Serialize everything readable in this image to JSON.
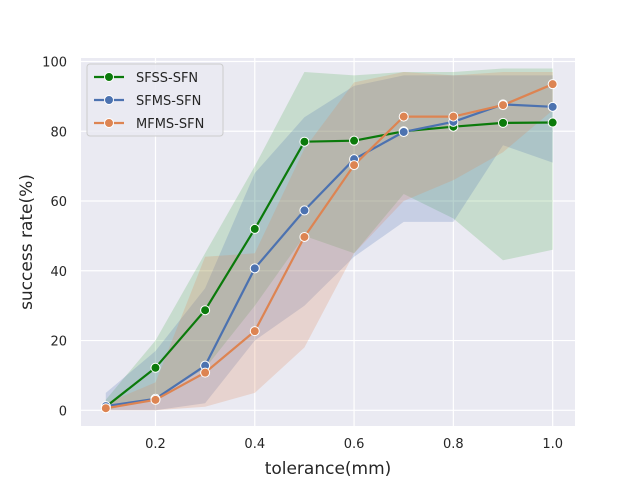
{
  "chart_data": {
    "type": "line",
    "title": "",
    "xlabel": "tolerance(mm)",
    "ylabel": "success rate(%)",
    "xlim": [
      0.05,
      1.045
    ],
    "ylim": [
      -4.5,
      101
    ],
    "grid": true,
    "legend_position": "top-left",
    "x": [
      0.1,
      0.2,
      0.3,
      0.4,
      0.5,
      0.6,
      0.7,
      0.8,
      0.9,
      1.0
    ],
    "x_ticks": [
      0.2,
      0.4,
      0.6,
      0.8,
      1.0
    ],
    "x_tick_labels": [
      "0.2",
      "0.4",
      "0.6",
      "0.8",
      "1.0"
    ],
    "y_ticks": [
      0,
      20,
      40,
      60,
      80,
      100
    ],
    "y_tick_labels": [
      "0",
      "20",
      "40",
      "60",
      "80",
      "100"
    ],
    "series": [
      {
        "name": "SFSS-SFN",
        "color": "#0b7a0b",
        "fill": "#4cae4c",
        "values": [
          1.0,
          12.2,
          28.7,
          52.0,
          77.0,
          77.3,
          80.0,
          81.3,
          82.4,
          82.5
        ],
        "lower": [
          0.0,
          3.5,
          12.0,
          30.0,
          50.0,
          45.0,
          62.0,
          55.0,
          43.0,
          46.0
        ],
        "upper": [
          3.0,
          20.0,
          45.0,
          70.0,
          97.0,
          96.0,
          97.0,
          97.0,
          98.0,
          98.0
        ]
      },
      {
        "name": "SFMS-SFN",
        "color": "#4c72b0",
        "fill": "#4c72b0",
        "values": [
          1.2,
          3.3,
          12.8,
          40.7,
          57.3,
          72.0,
          79.8,
          82.7,
          87.7,
          87.0
        ],
        "lower": [
          0.0,
          0.0,
          2.0,
          20.0,
          30.0,
          44.0,
          54.0,
          54.0,
          76.0,
          71.0
        ],
        "upper": [
          5.0,
          17.0,
          35.0,
          68.0,
          84.0,
          93.0,
          96.0,
          96.0,
          96.0,
          96.0
        ]
      },
      {
        "name": "MFMS-SFN",
        "color": "#dd8452",
        "fill": "#dd8452",
        "values": [
          0.6,
          3.0,
          10.8,
          22.7,
          49.7,
          70.3,
          84.2,
          84.2,
          87.5,
          93.5
        ],
        "lower": [
          0.0,
          0.0,
          1.0,
          5.0,
          18.0,
          45.0,
          60.0,
          66.0,
          74.0,
          86.0
        ],
        "upper": [
          2.0,
          8.0,
          44.0,
          45.0,
          75.0,
          94.0,
          97.0,
          96.0,
          97.0,
          97.0
        ]
      }
    ]
  }
}
